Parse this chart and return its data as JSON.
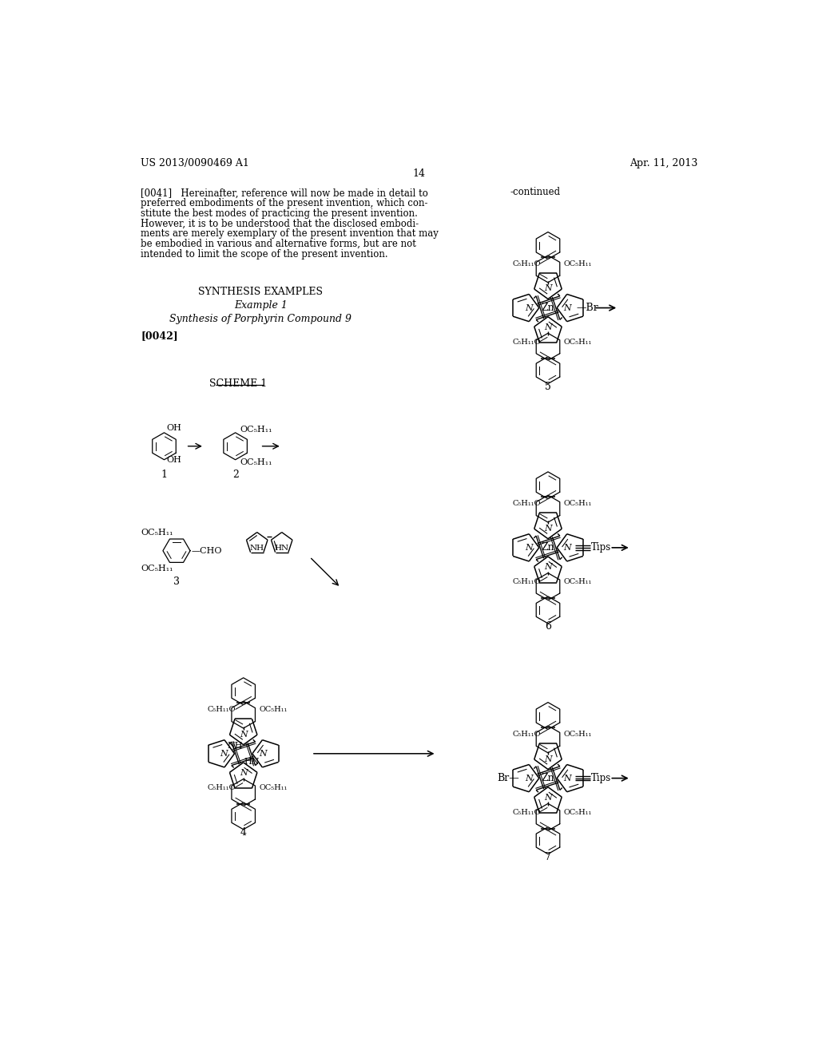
{
  "background_color": "#ffffff",
  "page_number": "14",
  "patent_number": "US 2013/0090469 A1",
  "patent_date": "Apr. 11, 2013",
  "header_text_lines": [
    "[0041]   Hereinafter, reference will now be made in detail to",
    "preferred embodiments of the present invention, which con-",
    "stitute the best modes of practicing the present invention.",
    "However, it is to be understood that the disclosed embodi-",
    "ments are merely exemplary of the present invention that may",
    "be embodied in various and alternative forms, but are not",
    "intended to limit the scope of the present invention."
  ],
  "section_title": "SYNTHESIS EXAMPLES",
  "example_title": "Example 1",
  "synthesis_title": "Synthesis of Porphyrin Compound 9",
  "paragraph_ref": "[0042]",
  "scheme_label": "SCHEME 1",
  "continued_label": "-continued"
}
